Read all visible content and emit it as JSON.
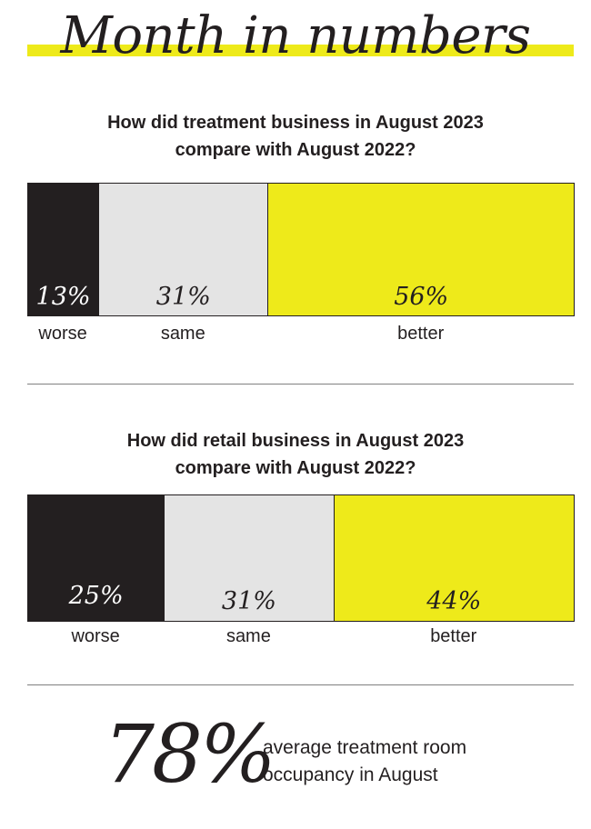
{
  "page": {
    "title": "Month in numbers",
    "colors": {
      "dark": "#231f20",
      "light": "#e4e4e4",
      "accent": "#eeea1a",
      "rule": "#808080"
    }
  },
  "chart_data": [
    {
      "type": "bar",
      "title": "How did treatment business in August 2023 compare with August 2022?",
      "title_lines": [
        "How did treatment business in August 2023",
        "compare with August 2022?"
      ],
      "categories": [
        "worse",
        "same",
        "better"
      ],
      "values": [
        13,
        31,
        56
      ],
      "value_labels": [
        "13%",
        "31%",
        "56%"
      ],
      "unit": "%",
      "stacked": true,
      "orientation": "horizontal"
    },
    {
      "type": "bar",
      "title": "How did retail business in August 2023 compare with August 2022?",
      "title_lines": [
        "How did retail business in August 2023",
        "compare with August 2022?"
      ],
      "categories": [
        "worse",
        "same",
        "better"
      ],
      "values": [
        25,
        31,
        44
      ],
      "value_labels": [
        "25%",
        "31%",
        "44%"
      ],
      "unit": "%",
      "stacked": true,
      "orientation": "horizontal"
    }
  ],
  "stat": {
    "value": "78%",
    "text_lines": [
      "average treatment room",
      "occupancy in August"
    ]
  }
}
